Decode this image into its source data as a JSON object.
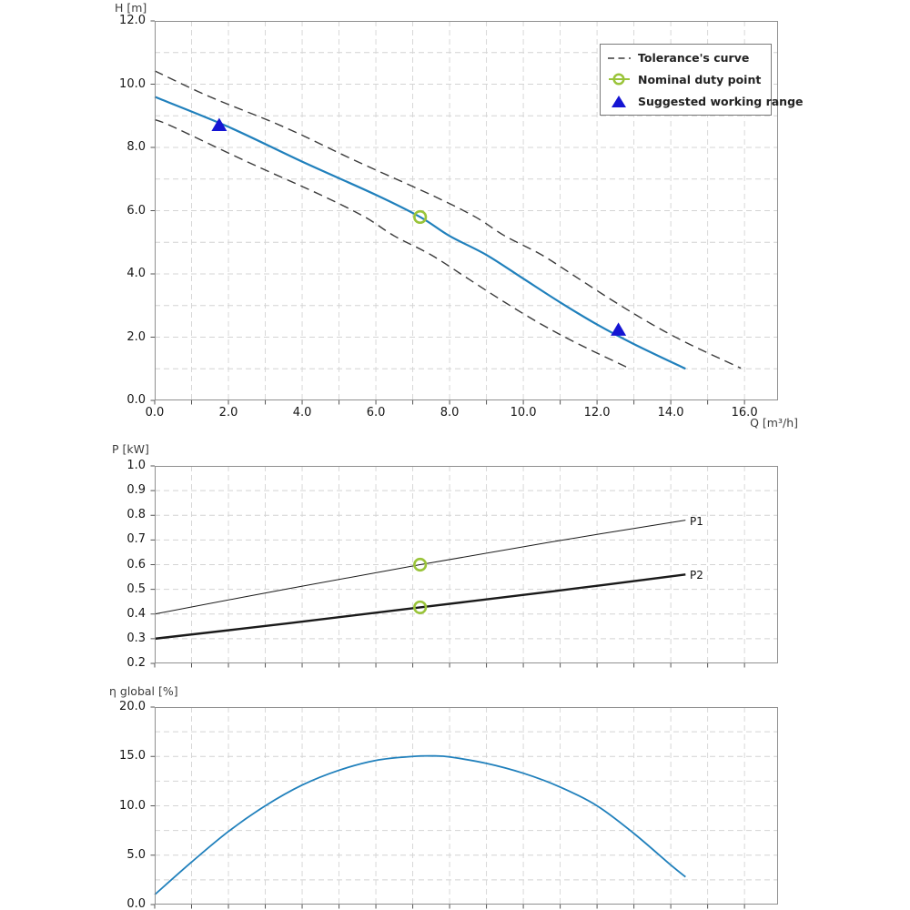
{
  "colors": {
    "curve_blue": "#2080bc",
    "marker_green": "#9ac43a",
    "marker_blue": "#1515d3",
    "tolerance": "#3a3a3a",
    "power_line": "#1a1a1a",
    "grid": "#d4d4d4",
    "spine": "#8f8f8f",
    "tick": "#555555",
    "text": "#151515",
    "axis_title": "#3d3d3d"
  },
  "chart_data": [
    {
      "id": "head",
      "type": "line",
      "title": "",
      "xlabel": "Q [m³/h]",
      "ylabel": "H [m]",
      "xlim": [
        0,
        16.91
      ],
      "ylim": [
        0,
        12
      ],
      "grid": true,
      "x_grid_step": 1,
      "y_grid_step": 1,
      "x_ticks": {
        "values": [
          0,
          2,
          4,
          6,
          8,
          10,
          12,
          14,
          16
        ],
        "labels": [
          "0.0",
          "2.0",
          "4.0",
          "6.0",
          "8.0",
          "10.0",
          "12.0",
          "14.0",
          "16.0"
        ]
      },
      "y_ticks": {
        "values": [
          0,
          2,
          4,
          6,
          8,
          10,
          12
        ],
        "labels": [
          "0.0",
          "2.0",
          "4.0",
          "6.0",
          "8.0",
          "10.0",
          "12.0"
        ]
      },
      "series": [
        {
          "name": "pump-curve",
          "style": "solid",
          "color_key": "curve_blue",
          "width": 2.2,
          "points": [
            [
              0,
              9.6
            ],
            [
              2,
              8.65
            ],
            [
              4,
              7.55
            ],
            [
              6,
              6.5
            ],
            [
              7.2,
              5.8
            ],
            [
              8,
              5.2
            ],
            [
              9,
              4.6
            ],
            [
              10,
              3.85
            ],
            [
              11,
              3.1
            ],
            [
              12,
              2.4
            ],
            [
              13,
              1.78
            ],
            [
              14.4,
              1.0
            ]
          ]
        },
        {
          "name": "tolerance-upper",
          "style": "dashed",
          "color_key": "tolerance",
          "width": 1.4,
          "points": [
            [
              0,
              10.42
            ],
            [
              1.5,
              9.6
            ],
            [
              3.5,
              8.65
            ],
            [
              5.5,
              7.55
            ],
            [
              7.5,
              6.5
            ],
            [
              8.7,
              5.8
            ],
            [
              9.5,
              5.2
            ],
            [
              10.5,
              4.6
            ],
            [
              11.5,
              3.85
            ],
            [
              12.5,
              3.1
            ],
            [
              13.5,
              2.4
            ],
            [
              14.5,
              1.78
            ],
            [
              15.9,
              1.02
            ]
          ]
        },
        {
          "name": "tolerance-lower",
          "style": "dashed",
          "color_key": "tolerance",
          "width": 1.4,
          "points": [
            [
              0,
              8.88
            ],
            [
              0.5,
              8.65
            ],
            [
              2.5,
              7.55
            ],
            [
              4.5,
              6.5
            ],
            [
              5.7,
              5.8
            ],
            [
              6.5,
              5.2
            ],
            [
              7.5,
              4.6
            ],
            [
              8.5,
              3.85
            ],
            [
              9.5,
              3.1
            ],
            [
              10.5,
              2.4
            ],
            [
              11.5,
              1.78
            ],
            [
              12.9,
              1.0
            ]
          ]
        }
      ],
      "markers": [
        {
          "name": "nominal-duty-point",
          "shape": "circle",
          "color_key": "marker_green",
          "x": 7.2,
          "y": 5.8
        },
        {
          "name": "working-range-min",
          "shape": "triangle",
          "color_key": "marker_blue",
          "x": 1.75,
          "y": 8.72
        },
        {
          "name": "working-range-max",
          "shape": "triangle",
          "color_key": "marker_blue",
          "x": 12.58,
          "y": 2.25
        }
      ],
      "legend": {
        "position": "upper right",
        "entries": [
          {
            "label": "Tolerance's curve",
            "marker": "dashed-line"
          },
          {
            "label": "Nominal duty point",
            "marker": "circle"
          },
          {
            "label": "Suggested working range",
            "marker": "triangle"
          }
        ]
      }
    },
    {
      "id": "power",
      "type": "line",
      "title": "",
      "xlabel": "",
      "ylabel": "P [kW]",
      "xlim": [
        0,
        16.91
      ],
      "ylim": [
        0.2,
        1.0
      ],
      "grid": true,
      "x_grid_step": 1,
      "y_grid_step": 0.1,
      "x_ticks": {
        "values": [
          0,
          2,
          4,
          6,
          8,
          10,
          12,
          14,
          16
        ],
        "labels": []
      },
      "y_ticks": {
        "values": [
          0.2,
          0.3,
          0.4,
          0.5,
          0.6,
          0.7,
          0.8,
          0.9,
          1.0
        ],
        "labels": [
          "0.2",
          "0.3",
          "0.4",
          "0.5",
          "0.6",
          "0.7",
          "0.8",
          "0.9",
          "1.0"
        ]
      },
      "series": [
        {
          "name": "P1",
          "label": "P1",
          "style": "solid",
          "color_key": "power_line",
          "width": 1.0,
          "points": [
            [
              0,
              0.4
            ],
            [
              3.6,
              0.502
            ],
            [
              7.2,
              0.6
            ],
            [
              10.8,
              0.693
            ],
            [
              14.4,
              0.78
            ]
          ]
        },
        {
          "name": "P2",
          "label": "P2",
          "style": "solid",
          "color_key": "power_line",
          "width": 2.4,
          "points": [
            [
              0,
              0.3
            ],
            [
              3.6,
              0.362
            ],
            [
              7.2,
              0.427
            ],
            [
              10.8,
              0.492
            ],
            [
              14.4,
              0.56
            ]
          ]
        }
      ],
      "markers": [
        {
          "name": "duty-point-p1",
          "shape": "circle",
          "color_key": "marker_green",
          "x": 7.2,
          "y": 0.6
        },
        {
          "name": "duty-point-p2",
          "shape": "circle",
          "color_key": "marker_green",
          "x": 7.2,
          "y": 0.427
        }
      ]
    },
    {
      "id": "efficiency",
      "type": "line",
      "title": "",
      "xlabel": "",
      "ylabel": "η global [%]",
      "xlim": [
        0,
        16.91
      ],
      "ylim": [
        0,
        20
      ],
      "grid": true,
      "x_grid_step": 1,
      "y_grid_step": 2.5,
      "x_ticks": {
        "values": [
          0,
          2,
          4,
          6,
          8,
          10,
          12,
          14,
          16
        ],
        "labels": []
      },
      "y_ticks": {
        "values": [
          0,
          5,
          10,
          15,
          20
        ],
        "labels": [
          "0.0",
          "5.0",
          "10.0",
          "15.0",
          "20.0"
        ]
      },
      "series": [
        {
          "name": "eta-curve",
          "style": "solid",
          "color_key": "curve_blue",
          "width": 1.8,
          "points": [
            [
              0,
              1.0
            ],
            [
              1,
              4.3
            ],
            [
              2,
              7.4
            ],
            [
              3,
              10.0
            ],
            [
              4,
              12.1
            ],
            [
              5,
              13.6
            ],
            [
              6,
              14.6
            ],
            [
              7,
              15.0
            ],
            [
              7.6,
              15.05
            ],
            [
              8,
              14.95
            ],
            [
              9,
              14.3
            ],
            [
              10,
              13.3
            ],
            [
              11,
              11.9
            ],
            [
              12,
              10.0
            ],
            [
              13,
              7.2
            ],
            [
              14,
              4.0
            ],
            [
              14.4,
              2.8
            ]
          ]
        }
      ],
      "markers": []
    }
  ]
}
